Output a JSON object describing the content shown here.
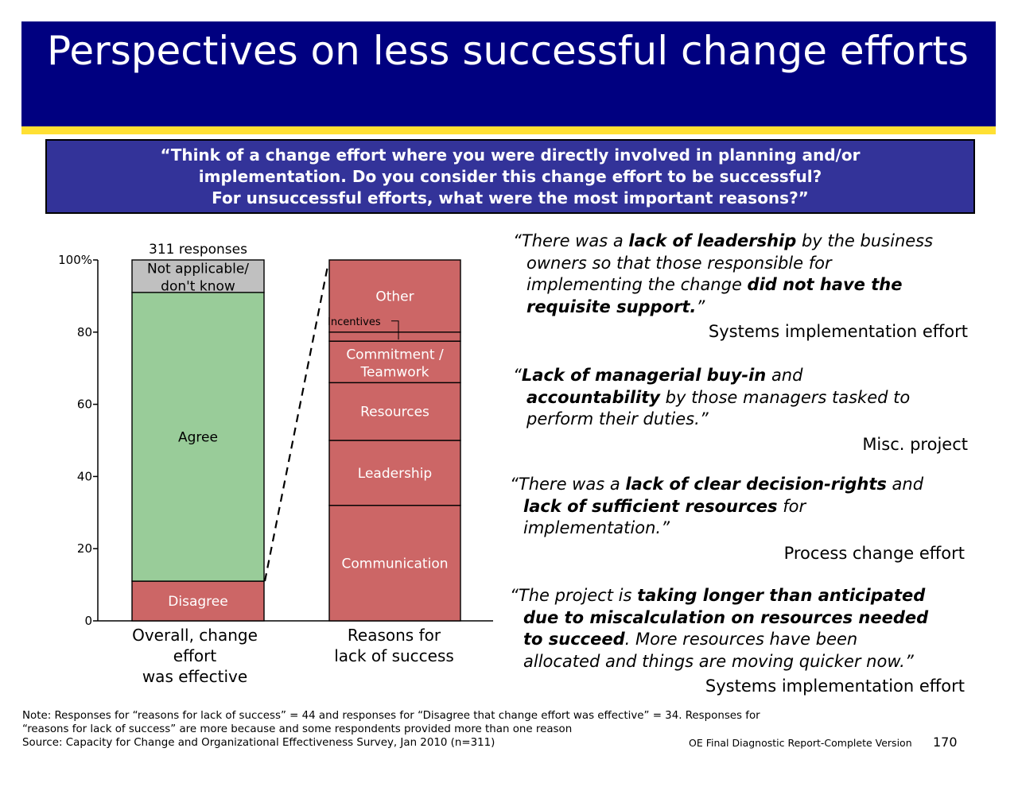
{
  "title": "Perspectives on less successful change efforts",
  "question": {
    "line1": "“Think of a change effort where you were directly involved in planning and/or",
    "line2": "implementation. Do you consider this change effort to be successful?",
    "line3": "For unsuccessful efforts, what were the most important reasons?”"
  },
  "colors": {
    "title_bg": "#000080",
    "accent_rule": "#FFE033",
    "question_bg": "#333399",
    "agree": "#99CC99",
    "disagree_reasons": "#CC6666",
    "not_applicable": "#C0C0C0"
  },
  "chart_data": {
    "type": "bar",
    "stacked": true,
    "ylim": [
      0,
      100
    ],
    "y_ticks": [
      "0",
      "20",
      "40",
      "60",
      "80",
      "100%"
    ],
    "annotation": "311 responses",
    "categories": [
      "Overall, change effort was effective",
      "Reasons for lack of success"
    ],
    "category_label_lines": [
      [
        "Overall, change",
        "effort",
        "was effective"
      ],
      [
        "Reasons for",
        "lack of success"
      ]
    ],
    "bars": [
      {
        "segments": [
          {
            "label": "Disagree",
            "value": 11
          },
          {
            "label": "Agree",
            "value": 80
          },
          {
            "label": "Not applicable/ don't know",
            "value": 9
          }
        ]
      },
      {
        "segments": [
          {
            "label": "Communication",
            "value": 32
          },
          {
            "label": "Leadership",
            "value": 18
          },
          {
            "label": "Resources",
            "value": 16
          },
          {
            "label": "Commitment / Teamwork",
            "value": 11.5
          },
          {
            "label": "Incentives",
            "value": 2.5
          },
          {
            "label": "Other",
            "value": 20
          }
        ]
      }
    ]
  },
  "quotes": [
    {
      "lines": [
        [
          [
            "“There was a ",
            false
          ],
          [
            "lack of leadership",
            true
          ],
          [
            " by the business",
            false
          ]
        ],
        [
          [
            "owners so that those responsible for",
            false
          ]
        ],
        [
          [
            "implementing the change ",
            false
          ],
          [
            "did not have the",
            true
          ]
        ],
        [
          [
            "requisite support.",
            true
          ],
          [
            "”",
            false
          ]
        ]
      ],
      "source": "Systems implementation effort"
    },
    {
      "lines": [
        [
          [
            "“",
            false
          ],
          [
            "Lack of managerial buy-in",
            true
          ],
          [
            " and",
            false
          ]
        ],
        [
          [
            "accountability",
            true
          ],
          [
            " by those managers tasked to",
            false
          ]
        ],
        [
          [
            "perform their duties.”",
            false
          ]
        ]
      ],
      "source": "Misc. project"
    },
    {
      "lines": [
        [
          [
            "“There was a ",
            false
          ],
          [
            "lack of clear decision-rights",
            true
          ],
          [
            " and",
            false
          ]
        ],
        [
          [
            "lack of sufficient resources",
            true
          ],
          [
            " for",
            false
          ]
        ],
        [
          [
            "implementation.”",
            false
          ]
        ]
      ],
      "source": "Process change effort"
    },
    {
      "lines": [
        [
          [
            "“The project is ",
            false
          ],
          [
            "taking longer than anticipated",
            true
          ]
        ],
        [
          [
            "due to miscalculation on resources needed",
            true
          ]
        ],
        [
          [
            "to succeed",
            true
          ],
          [
            ". More resources have been",
            false
          ]
        ],
        [
          [
            "allocated and things are moving quicker now.”",
            false
          ]
        ]
      ],
      "source": "Systems implementation effort"
    }
  ],
  "footnote": {
    "line1": "Note: Responses for “reasons for lack of success” = 44 and responses for “Disagree that change effort was effective” = 34. Responses for",
    "line2": "“reasons for lack of success” are more because and some respondents provided more than one reason",
    "line3": "Source: Capacity for Change and Organizational Effectiveness Survey, Jan 2010 (n=311)"
  },
  "report_name": "OE Final Diagnostic Report-Complete Version",
  "page_number": "170"
}
